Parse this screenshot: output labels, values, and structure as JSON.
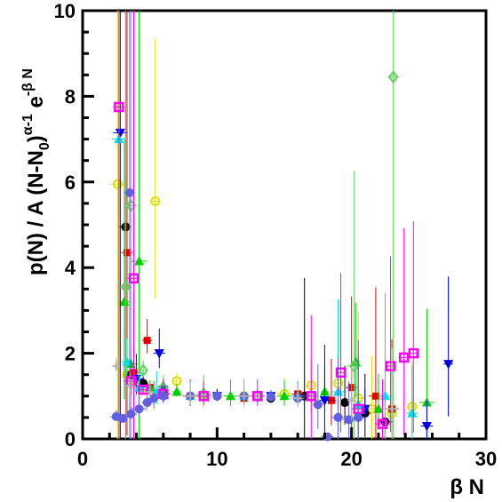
{
  "chart_data": {
    "type": "scatter",
    "title": "",
    "xlabel": "β N",
    "ylabel": {
      "main": "p(N) / A (N-N",
      "sub": "0",
      "close": ")",
      "exp1": "α-1",
      "tail": " e",
      "exp2": "-β N"
    },
    "xlim": [
      0,
      30
    ],
    "ylim": [
      0,
      10
    ],
    "x_ticks": [
      "0",
      "10",
      "20",
      "30"
    ],
    "y_ticks": [
      "0",
      "2",
      "4",
      "6",
      "8",
      "10"
    ],
    "grid": false,
    "series": [
      {
        "color": "#e0e000",
        "marker": "open-circle",
        "points": [
          [
            2.6,
            5.95
          ],
          [
            5.4,
            5.55
          ],
          [
            3.3,
            1.5
          ],
          [
            4.0,
            1.3
          ],
          [
            4.5,
            1.2
          ],
          [
            5.5,
            1.05
          ],
          [
            7.0,
            1.35
          ],
          [
            9,
            1.0
          ],
          [
            12,
            1.0
          ],
          [
            15,
            1.05
          ],
          [
            17,
            1.25
          ],
          [
            19,
            1.3
          ],
          [
            20.5,
            0.95
          ],
          [
            21.5,
            0.7
          ],
          [
            23,
            0.6
          ],
          [
            24.5,
            0.75
          ]
        ]
      },
      {
        "color": "#000000",
        "marker": "filled-circle",
        "points": [
          [
            3.2,
            4.95
          ],
          [
            3.6,
            1.5
          ],
          [
            4.5,
            1.3
          ],
          [
            6,
            1.05
          ],
          [
            10,
            1.0
          ],
          [
            14,
            0.95
          ],
          [
            16.5,
            1.0
          ],
          [
            19.5,
            0.85
          ],
          [
            21,
            0.6
          ],
          [
            22.5,
            0.4
          ]
        ]
      },
      {
        "color": "#e00000",
        "marker": "filled-square",
        "points": [
          [
            3.3,
            4.35
          ],
          [
            4.8,
            2.3
          ],
          [
            3.8,
            1.55
          ],
          [
            5,
            1.2
          ],
          [
            8,
            1.0
          ],
          [
            12,
            0.95
          ],
          [
            16,
            1.05
          ],
          [
            18.5,
            0.9
          ],
          [
            20,
            1.2
          ],
          [
            21.8,
            1.0
          ],
          [
            23,
            0.7
          ]
        ]
      },
      {
        "color": "#00d000",
        "marker": "triangle-up",
        "points": [
          [
            3.1,
            3.2
          ],
          [
            4.2,
            4.15
          ],
          [
            3.6,
            1.75
          ],
          [
            5,
            1.2
          ],
          [
            7,
            1.1
          ],
          [
            11,
            1.0
          ],
          [
            15,
            1.0
          ],
          [
            18,
            1.1
          ],
          [
            20.3,
            1.8
          ],
          [
            22,
            0.7
          ],
          [
            25.6,
            0.85
          ]
        ]
      },
      {
        "color": "#0000e0",
        "marker": "triangle-down",
        "points": [
          [
            2.8,
            7.15
          ],
          [
            5.7,
            2.0
          ],
          [
            4,
            1.4
          ],
          [
            6,
            1.15
          ],
          [
            10,
            1.0
          ],
          [
            14,
            1.0
          ],
          [
            18,
            0.9
          ],
          [
            21,
            0.7
          ],
          [
            25.6,
            0.3
          ],
          [
            27.2,
            1.75
          ]
        ]
      },
      {
        "color": "#00e0e0",
        "marker": "triangle-up",
        "points": [
          [
            2.7,
            7.0
          ],
          [
            3.3,
            1.8
          ],
          [
            4.2,
            1.2
          ],
          [
            5.5,
            1.1
          ],
          [
            8,
            1.0
          ],
          [
            12,
            1.0
          ],
          [
            16,
            1.0
          ],
          [
            19,
            1.1
          ],
          [
            20.5,
            0.8
          ],
          [
            22.5,
            1.0
          ],
          [
            24.5,
            0.6
          ]
        ]
      },
      {
        "color": "#60d060",
        "marker": "open-diamond",
        "points": [
          [
            3.6,
            5.45
          ],
          [
            3.2,
            3.55
          ],
          [
            4.5,
            1.6
          ],
          [
            6,
            1.2
          ],
          [
            9,
            1.05
          ],
          [
            13,
            1.0
          ],
          [
            17,
            1.0
          ],
          [
            20.2,
            1.7
          ],
          [
            23.1,
            8.45
          ]
        ]
      },
      {
        "color": "#ff00ff",
        "marker": "open-square",
        "points": [
          [
            2.7,
            7.75
          ],
          [
            3.8,
            3.75
          ],
          [
            3.6,
            1.35
          ],
          [
            4.5,
            1.15
          ],
          [
            6,
            1.05
          ],
          [
            9,
            1.0
          ],
          [
            13,
            1.0
          ],
          [
            17,
            1.0
          ],
          [
            19.2,
            1.55
          ],
          [
            20.5,
            0.7
          ],
          [
            22.3,
            0.35
          ],
          [
            22.9,
            1.7
          ],
          [
            23.9,
            1.9
          ],
          [
            24.6,
            2.0
          ]
        ]
      },
      {
        "color": "#6060e0",
        "marker": "filled-circle",
        "points": [
          [
            3.5,
            5.75
          ],
          [
            2.5,
            0.52
          ],
          [
            3.0,
            0.48
          ],
          [
            3.6,
            0.58
          ],
          [
            4.2,
            0.7
          ],
          [
            4.8,
            0.85
          ],
          [
            5.3,
            0.95
          ],
          [
            6,
            1.0
          ],
          [
            8,
            1.0
          ],
          [
            10,
            1.0
          ],
          [
            12,
            1.0
          ],
          [
            14,
            0.98
          ],
          [
            16,
            0.95
          ],
          [
            17.5,
            0.8
          ],
          [
            18.2,
            0.05
          ],
          [
            19,
            0.5
          ],
          [
            19.8,
            0.45
          ],
          [
            20.5,
            0.5
          ]
        ]
      },
      {
        "color": "#b0b0b0",
        "marker": "plus",
        "points": [
          [
            2.5,
            1.7
          ],
          [
            3.5,
            1.25
          ],
          [
            5,
            1.1
          ],
          [
            8,
            1.0
          ],
          [
            12,
            1.0
          ],
          [
            16,
            0.95
          ],
          [
            20,
            0.9
          ],
          [
            23,
            0.7
          ]
        ]
      }
    ]
  }
}
